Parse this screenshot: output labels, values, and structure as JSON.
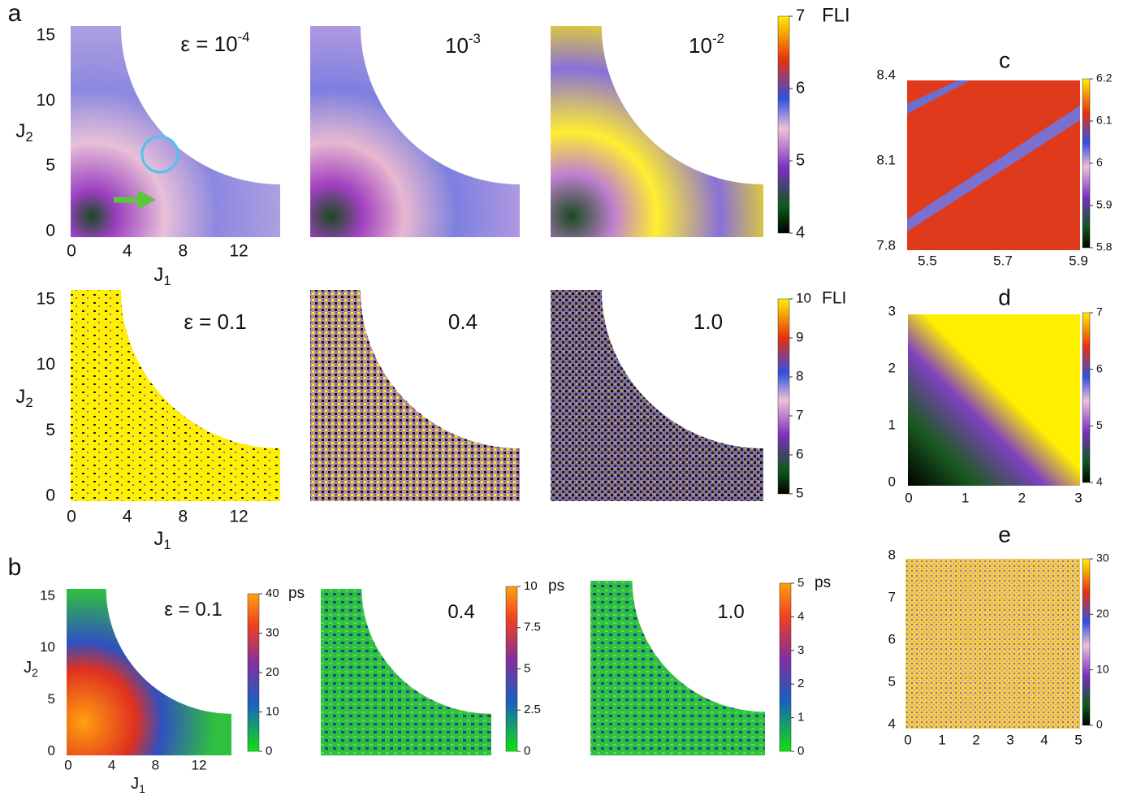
{
  "panel_letters": [
    "a",
    "b"
  ],
  "fli_low": {
    "eps_labels": [
      {
        "text": "ε = 10",
        "exp": "-4"
      },
      {
        "text": "10",
        "exp": "-3"
      },
      {
        "text": "10",
        "exp": "-2"
      }
    ],
    "x_ticks": [
      "0",
      "4",
      "8",
      "12"
    ],
    "y_ticks": [
      "0",
      "5",
      "10",
      "15"
    ],
    "x_label": {
      "symbol": "J",
      "sub": "1"
    },
    "y_label": {
      "symbol": "J",
      "sub": "2"
    },
    "colorbar": {
      "ticks": [
        "7",
        "6",
        "5",
        "4"
      ],
      "unit": "FLI"
    }
  },
  "fli_high": {
    "eps_labels": [
      {
        "text": "ε = 0.1"
      },
      {
        "text": "0.4"
      },
      {
        "text": "1.0"
      }
    ],
    "x_ticks": [
      "0",
      "4",
      "8",
      "12"
    ],
    "y_ticks": [
      "0",
      "5",
      "10",
      "15"
    ],
    "x_label": {
      "symbol": "J",
      "sub": "1"
    },
    "y_label": {
      "symbol": "J",
      "sub": "2"
    },
    "colorbar": {
      "ticks": [
        "10",
        "9",
        "8",
        "7",
        "6",
        "5"
      ],
      "unit": "FLI"
    }
  },
  "ps": {
    "eps_labels": [
      {
        "text": "ε = 0.1"
      },
      {
        "text": "0.4"
      },
      {
        "text": "1.0"
      }
    ],
    "x_ticks": [
      "0",
      "4",
      "8",
      "12"
    ],
    "y_ticks": [
      "0",
      "5",
      "10",
      "15"
    ],
    "x_label": {
      "symbol": "J",
      "sub": "1"
    },
    "y_label": {
      "symbol": "J",
      "sub": "2"
    },
    "colorbars": [
      {
        "ticks": [
          "40",
          "30",
          "20",
          "10",
          "0"
        ],
        "unit": "ps"
      },
      {
        "ticks": [
          "10",
          "7.5",
          "5",
          "2.5",
          "0"
        ],
        "unit": "ps"
      },
      {
        "ticks": [
          "5",
          "4",
          "3",
          "2",
          "1",
          "0"
        ],
        "unit": "ps"
      }
    ]
  },
  "zoom_c": {
    "title": "c",
    "x_ticks": [
      "5.5",
      "5.7",
      "5.9"
    ],
    "y_ticks": [
      "7.8",
      "8.1",
      "8.4"
    ],
    "colorbar": {
      "ticks": [
        "6.2",
        "6.1",
        "6",
        "5.9",
        "5.8"
      ]
    }
  },
  "zoom_d": {
    "title": "d",
    "x_ticks": [
      "0",
      "1",
      "2",
      "3"
    ],
    "y_ticks": [
      "0",
      "1",
      "2",
      "3"
    ],
    "colorbar": {
      "ticks": [
        "7",
        "6",
        "5",
        "4"
      ]
    }
  },
  "zoom_e": {
    "title": "e",
    "x_ticks": [
      "0",
      "1",
      "2",
      "3",
      "4",
      "5"
    ],
    "y_ticks": [
      "4",
      "5",
      "6",
      "7",
      "8"
    ],
    "colorbar": {
      "ticks": [
        "30",
        "20",
        "10",
        "0"
      ]
    }
  }
}
